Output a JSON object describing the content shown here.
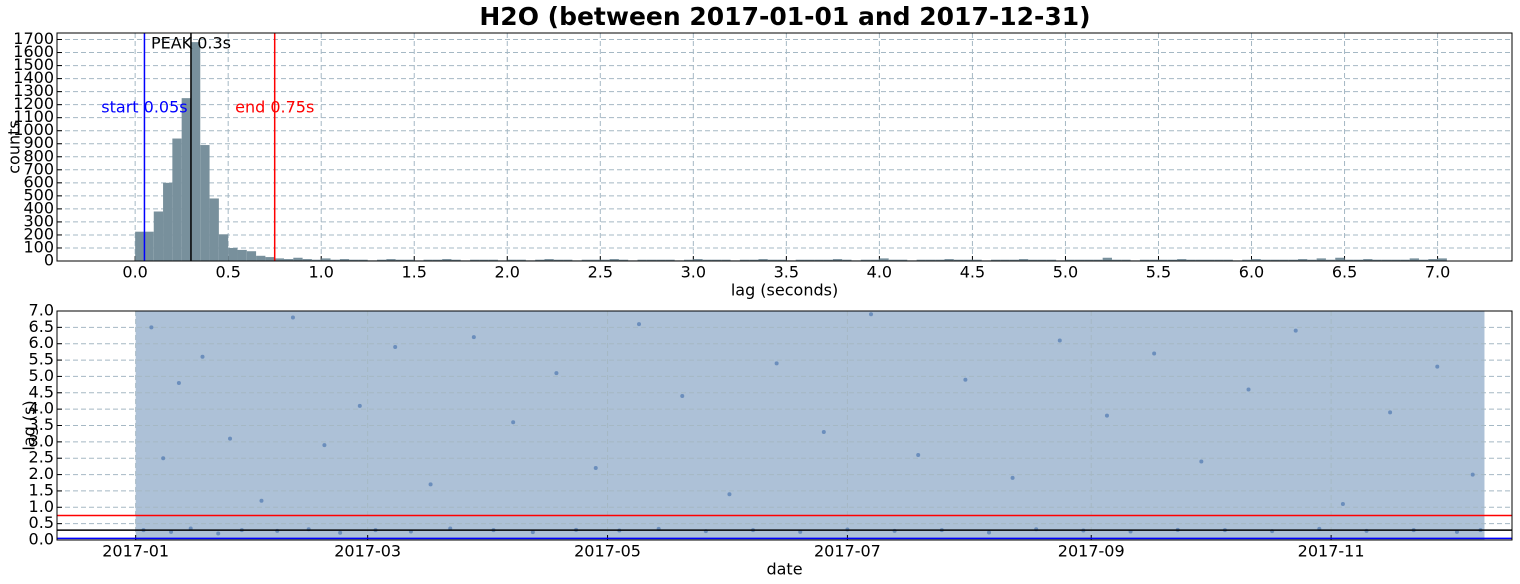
{
  "title": "H2O (between 2017-01-01 and 2017-12-31)",
  "chart_data": [
    {
      "type": "histogram",
      "xlabel": "lag (seconds)",
      "ylabel": "counts",
      "color": "#78909c",
      "grid": true,
      "bins": [
        0,
        0.05,
        0.1,
        0.15,
        0.2,
        0.25,
        0.3,
        0.35,
        0.4,
        0.45,
        0.5,
        0.55,
        0.6,
        0.65,
        0.7,
        0.75,
        0.8,
        0.85,
        0.9,
        0.95,
        1,
        1.05,
        1.1,
        1.15,
        1.2,
        1.25,
        1.3,
        1.35,
        1.4,
        1.45,
        1.5,
        1.55,
        1.6,
        1.65,
        1.7,
        1.75,
        1.8,
        1.85,
        1.9,
        1.95,
        2,
        2.05,
        2.1,
        2.15,
        2.2,
        2.25,
        2.3,
        2.35,
        2.4,
        2.45,
        2.5,
        2.55,
        2.6,
        2.65,
        2.7,
        2.75,
        2.8,
        2.85,
        2.9,
        2.95,
        3,
        3.05,
        3.1,
        3.15,
        3.2,
        3.25,
        3.3,
        3.35,
        3.4,
        3.45,
        3.5,
        3.55,
        3.6,
        3.65,
        3.7,
        3.75,
        3.8,
        3.85,
        3.9,
        3.95,
        4,
        4.05,
        4.1,
        4.15,
        4.2,
        4.25,
        4.3,
        4.35,
        4.4,
        4.45,
        4.5,
        4.55,
        4.6,
        4.65,
        4.7,
        4.75,
        4.8,
        4.85,
        4.9,
        4.95,
        5,
        5.05,
        5.1,
        5.15,
        5.2,
        5.25,
        5.3,
        5.35,
        5.4,
        5.45,
        5.5,
        5.55,
        5.6,
        5.65,
        5.7,
        5.75,
        5.8,
        5.85,
        5.9,
        5.95,
        6,
        6.05,
        6.1,
        6.15,
        6.2,
        6.25,
        6.3,
        6.35,
        6.4,
        6.45,
        6.5,
        6.55,
        6.6,
        6.65,
        6.7,
        6.75,
        6.8,
        6.85,
        6.9,
        6.95,
        7,
        7.05
      ],
      "values": [
        225,
        225,
        380,
        600,
        940,
        1250,
        1680,
        890,
        480,
        205,
        100,
        85,
        75,
        40,
        30,
        20,
        15,
        25,
        15,
        10,
        20,
        10,
        15,
        10,
        10,
        5,
        10,
        15,
        10,
        10,
        5,
        10,
        10,
        15,
        10,
        5,
        10,
        10,
        10,
        5,
        10,
        10,
        5,
        10,
        15,
        10,
        10,
        5,
        10,
        10,
        10,
        15,
        10,
        5,
        10,
        10,
        10,
        10,
        5,
        10,
        15,
        10,
        10,
        10,
        5,
        10,
        10,
        15,
        10,
        10,
        5,
        10,
        10,
        10,
        10,
        15,
        10,
        5,
        10,
        10,
        20,
        10,
        10,
        5,
        10,
        10,
        10,
        15,
        10,
        10,
        10,
        5,
        10,
        10,
        10,
        15,
        10,
        10,
        10,
        5,
        10,
        10,
        10,
        10,
        25,
        10,
        10,
        5,
        10,
        10,
        10,
        10,
        15,
        10,
        10,
        10,
        10,
        10,
        5,
        10,
        15,
        10,
        10,
        10,
        10,
        15,
        10,
        20,
        10,
        25,
        10,
        10,
        15,
        10,
        10,
        10,
        10,
        20,
        10,
        15,
        20
      ],
      "xlim": [
        -0.42,
        7.4
      ],
      "ylim": [
        0,
        1750
      ],
      "xticks": [
        {
          "value": 0,
          "label": "0.0"
        },
        0.5,
        {
          "value": 1,
          "label": "1.0"
        },
        1.5,
        {
          "value": 2,
          "label": "2.0"
        },
        2.5,
        {
          "value": 3,
          "label": "3.0"
        },
        3.5,
        {
          "value": 4,
          "label": "4.0"
        },
        4.5,
        {
          "value": 5,
          "label": "5.0"
        },
        5.5,
        {
          "value": 6,
          "label": "6.0"
        },
        6.5,
        {
          "value": 7,
          "label": "7.0"
        }
      ],
      "yticks": [
        0,
        100,
        200,
        300,
        400,
        500,
        600,
        700,
        800,
        900,
        1000,
        1100,
        1200,
        1300,
        1400,
        1500,
        1600,
        1700
      ],
      "markers": [
        {
          "value": 0.05,
          "label": "start 0.05s",
          "color": "#0000ff"
        },
        {
          "value": 0.75,
          "label": "end 0.75s",
          "color": "#ff0000"
        },
        {
          "value": 0.3,
          "label": "PEAK 0.3s",
          "color": "#000000"
        }
      ]
    },
    {
      "type": "scatter",
      "xlabel": "date",
      "ylabel": "lag (s)",
      "color": "#4f78b0",
      "grid": true,
      "shaded_range": {
        "x": [
          "2017-01-01",
          "2017-12-10"
        ],
        "color": "#adc1d7"
      },
      "x": [
        "2017-01-03",
        "2017-01-05",
        "2017-01-08",
        "2017-01-10",
        "2017-01-12",
        "2017-01-15",
        "2017-01-18",
        "2017-01-22",
        "2017-01-25",
        "2017-01-28",
        "2017-02-02",
        "2017-02-06",
        "2017-02-10",
        "2017-02-14",
        "2017-02-18",
        "2017-02-22",
        "2017-02-27",
        "2017-03-03",
        "2017-03-08",
        "2017-03-12",
        "2017-03-17",
        "2017-03-22",
        "2017-03-28",
        "2017-04-02",
        "2017-04-07",
        "2017-04-12",
        "2017-04-18",
        "2017-04-23",
        "2017-04-28",
        "2017-05-04",
        "2017-05-09",
        "2017-05-14",
        "2017-05-20",
        "2017-05-26",
        "2017-06-01",
        "2017-06-07",
        "2017-06-13",
        "2017-06-19",
        "2017-06-25",
        "2017-07-01",
        "2017-07-07",
        "2017-07-13",
        "2017-07-19",
        "2017-07-25",
        "2017-07-31",
        "2017-08-06",
        "2017-08-12",
        "2017-08-18",
        "2017-08-24",
        "2017-08-30",
        "2017-09-05",
        "2017-09-11",
        "2017-09-17",
        "2017-09-23",
        "2017-09-29",
        "2017-10-05",
        "2017-10-11",
        "2017-10-17",
        "2017-10-23",
        "2017-10-29",
        "2017-11-04",
        "2017-11-10",
        "2017-11-16",
        "2017-11-22",
        "2017-11-28",
        "2017-12-03",
        "2017-12-07",
        "2017-12-09"
      ],
      "values": [
        0.3,
        6.5,
        2.5,
        0.25,
        4.8,
        0.35,
        5.6,
        0.2,
        3.1,
        0.3,
        1.2,
        0.28,
        6.8,
        0.33,
        2.9,
        0.22,
        4.1,
        0.3,
        5.9,
        0.26,
        1.7,
        0.35,
        6.2,
        0.3,
        3.6,
        0.24,
        5.1,
        0.31,
        2.2,
        0.29,
        6.6,
        0.34,
        4.4,
        0.27,
        1.4,
        0.3,
        5.4,
        0.25,
        3.3,
        0.32,
        6.9,
        0.28,
        2.6,
        0.3,
        4.9,
        0.23,
        1.9,
        0.33,
        6.1,
        0.29,
        3.8,
        0.26,
        5.7,
        0.31,
        2.4,
        0.3,
        4.6,
        0.27,
        6.4,
        0.34,
        1.1,
        0.28,
        3.9,
        0.3,
        5.3,
        0.25,
        2.0,
        0.3
      ],
      "xlim": [
        "2016-12-12",
        "2017-12-17"
      ],
      "xticks": [
        "2017-01",
        "2017-03",
        "2017-05",
        "2017-07",
        "2017-09",
        "2017-11"
      ],
      "ylim": [
        0,
        7
      ],
      "yticks": [
        {
          "value": 0,
          "label": "0.0"
        },
        0.5,
        {
          "value": 1,
          "label": "1.0"
        },
        1.5,
        {
          "value": 2,
          "label": "2.0"
        },
        2.5,
        {
          "value": 3,
          "label": "3.0"
        },
        3.5,
        {
          "value": 4,
          "label": "4.0"
        },
        4.5,
        {
          "value": 5,
          "label": "5.0"
        },
        5.5,
        {
          "value": 6,
          "label": "6.0"
        },
        6.5,
        {
          "value": 7,
          "label": "7.0"
        }
      ],
      "hlines": [
        {
          "value": 0.75,
          "color": "#ff0000"
        },
        {
          "value": 0.3,
          "color": "#000000"
        },
        {
          "value": 0.05,
          "color": "#0000ff"
        }
      ]
    }
  ]
}
